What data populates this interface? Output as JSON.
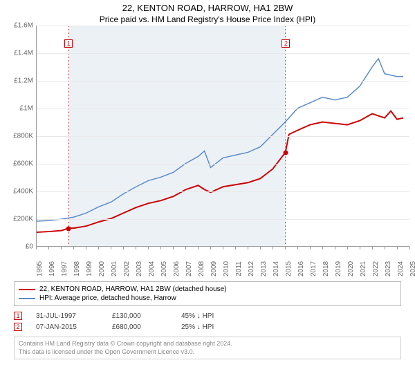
{
  "title": {
    "line1": "22, KENTON ROAD, HARROW, HA1 2BW",
    "line2": "Price paid vs. HM Land Registry's House Price Index (HPI)"
  },
  "chart": {
    "type": "line",
    "background_color": "#ffffff",
    "grid_color": "#e8e8e8",
    "axis_color": "#999999",
    "label_color": "#666666",
    "label_fontsize": 10,
    "xlim": [
      1995,
      2025
    ],
    "ylim": [
      0,
      1600000
    ],
    "ytick_step": 200000,
    "yticks": [
      "£0",
      "£200K",
      "£400K",
      "£600K",
      "£800K",
      "£1M",
      "£1.2M",
      "£1.4M",
      "£1.6M"
    ],
    "xticks": [
      1995,
      1996,
      1997,
      1998,
      1999,
      2000,
      2001,
      2002,
      2003,
      2004,
      2005,
      2006,
      2007,
      2008,
      2009,
      2010,
      2011,
      2012,
      2013,
      2014,
      2015,
      2016,
      2017,
      2018,
      2019,
      2020,
      2021,
      2022,
      2023,
      2024,
      2025
    ],
    "shade": {
      "from": 1997.58,
      "to": 2015.02,
      "color": "rgba(200,215,230,0.35)"
    },
    "series_price": {
      "label": "22, KENTON ROAD, HARROW, HA1 2BW (detached house)",
      "color": "#cc0000",
      "line_width": 2,
      "data": [
        [
          1995,
          100000
        ],
        [
          1996,
          105000
        ],
        [
          1997,
          112000
        ],
        [
          1997.58,
          130000
        ],
        [
          1998,
          130000
        ],
        [
          1999,
          145000
        ],
        [
          2000,
          175000
        ],
        [
          2001,
          200000
        ],
        [
          2002,
          240000
        ],
        [
          2003,
          280000
        ],
        [
          2004,
          310000
        ],
        [
          2005,
          330000
        ],
        [
          2006,
          360000
        ],
        [
          2007,
          410000
        ],
        [
          2008,
          440000
        ],
        [
          2008.5,
          410000
        ],
        [
          2009,
          390000
        ],
        [
          2010,
          430000
        ],
        [
          2011,
          445000
        ],
        [
          2012,
          460000
        ],
        [
          2013,
          490000
        ],
        [
          2014,
          560000
        ],
        [
          2015.02,
          680000
        ],
        [
          2015.3,
          810000
        ],
        [
          2016,
          840000
        ],
        [
          2017,
          880000
        ],
        [
          2018,
          900000
        ],
        [
          2019,
          890000
        ],
        [
          2020,
          880000
        ],
        [
          2021,
          910000
        ],
        [
          2022,
          960000
        ],
        [
          2023,
          930000
        ],
        [
          2023.5,
          980000
        ],
        [
          2024,
          920000
        ],
        [
          2024.5,
          930000
        ]
      ]
    },
    "series_hpi": {
      "label": "HPI: Average price, detached house, Harrow",
      "color": "#5b8bc9",
      "line_width": 1.5,
      "data": [
        [
          1995,
          180000
        ],
        [
          1996,
          185000
        ],
        [
          1997,
          195000
        ],
        [
          1998,
          210000
        ],
        [
          1999,
          240000
        ],
        [
          2000,
          285000
        ],
        [
          2001,
          320000
        ],
        [
          2002,
          380000
        ],
        [
          2003,
          430000
        ],
        [
          2004,
          475000
        ],
        [
          2005,
          500000
        ],
        [
          2006,
          535000
        ],
        [
          2007,
          600000
        ],
        [
          2008,
          650000
        ],
        [
          2008.5,
          690000
        ],
        [
          2009,
          570000
        ],
        [
          2010,
          640000
        ],
        [
          2011,
          660000
        ],
        [
          2012,
          680000
        ],
        [
          2013,
          720000
        ],
        [
          2014,
          810000
        ],
        [
          2015,
          900000
        ],
        [
          2016,
          1000000
        ],
        [
          2017,
          1040000
        ],
        [
          2018,
          1080000
        ],
        [
          2019,
          1060000
        ],
        [
          2020,
          1080000
        ],
        [
          2021,
          1160000
        ],
        [
          2022,
          1300000
        ],
        [
          2022.5,
          1360000
        ],
        [
          2023,
          1250000
        ],
        [
          2024,
          1230000
        ],
        [
          2024.5,
          1230000
        ]
      ]
    },
    "markers": [
      {
        "n": "1",
        "year": 1997.58,
        "price": 130000,
        "color": "#cc0000"
      },
      {
        "n": "2",
        "year": 2015.02,
        "price": 680000,
        "color": "#cc0000"
      }
    ]
  },
  "legend": {
    "border_color": "#bbbbbb",
    "items": [
      {
        "color": "#cc0000",
        "label_path": "chart.series_price.label"
      },
      {
        "color": "#5b8bc9",
        "label_path": "chart.series_hpi.label"
      }
    ]
  },
  "sales": [
    {
      "n": "1",
      "border_color": "#cc0000",
      "date": "31-JUL-1997",
      "price": "£130,000",
      "pct": "45% ↓ HPI"
    },
    {
      "n": "2",
      "border_color": "#cc0000",
      "date": "07-JAN-2015",
      "price": "£680,000",
      "pct": "25% ↓ HPI"
    }
  ],
  "credit": {
    "line1": "Contains HM Land Registry data © Crown copyright and database right 2024.",
    "line2": "This data is licensed under the Open Government Licence v3.0."
  }
}
